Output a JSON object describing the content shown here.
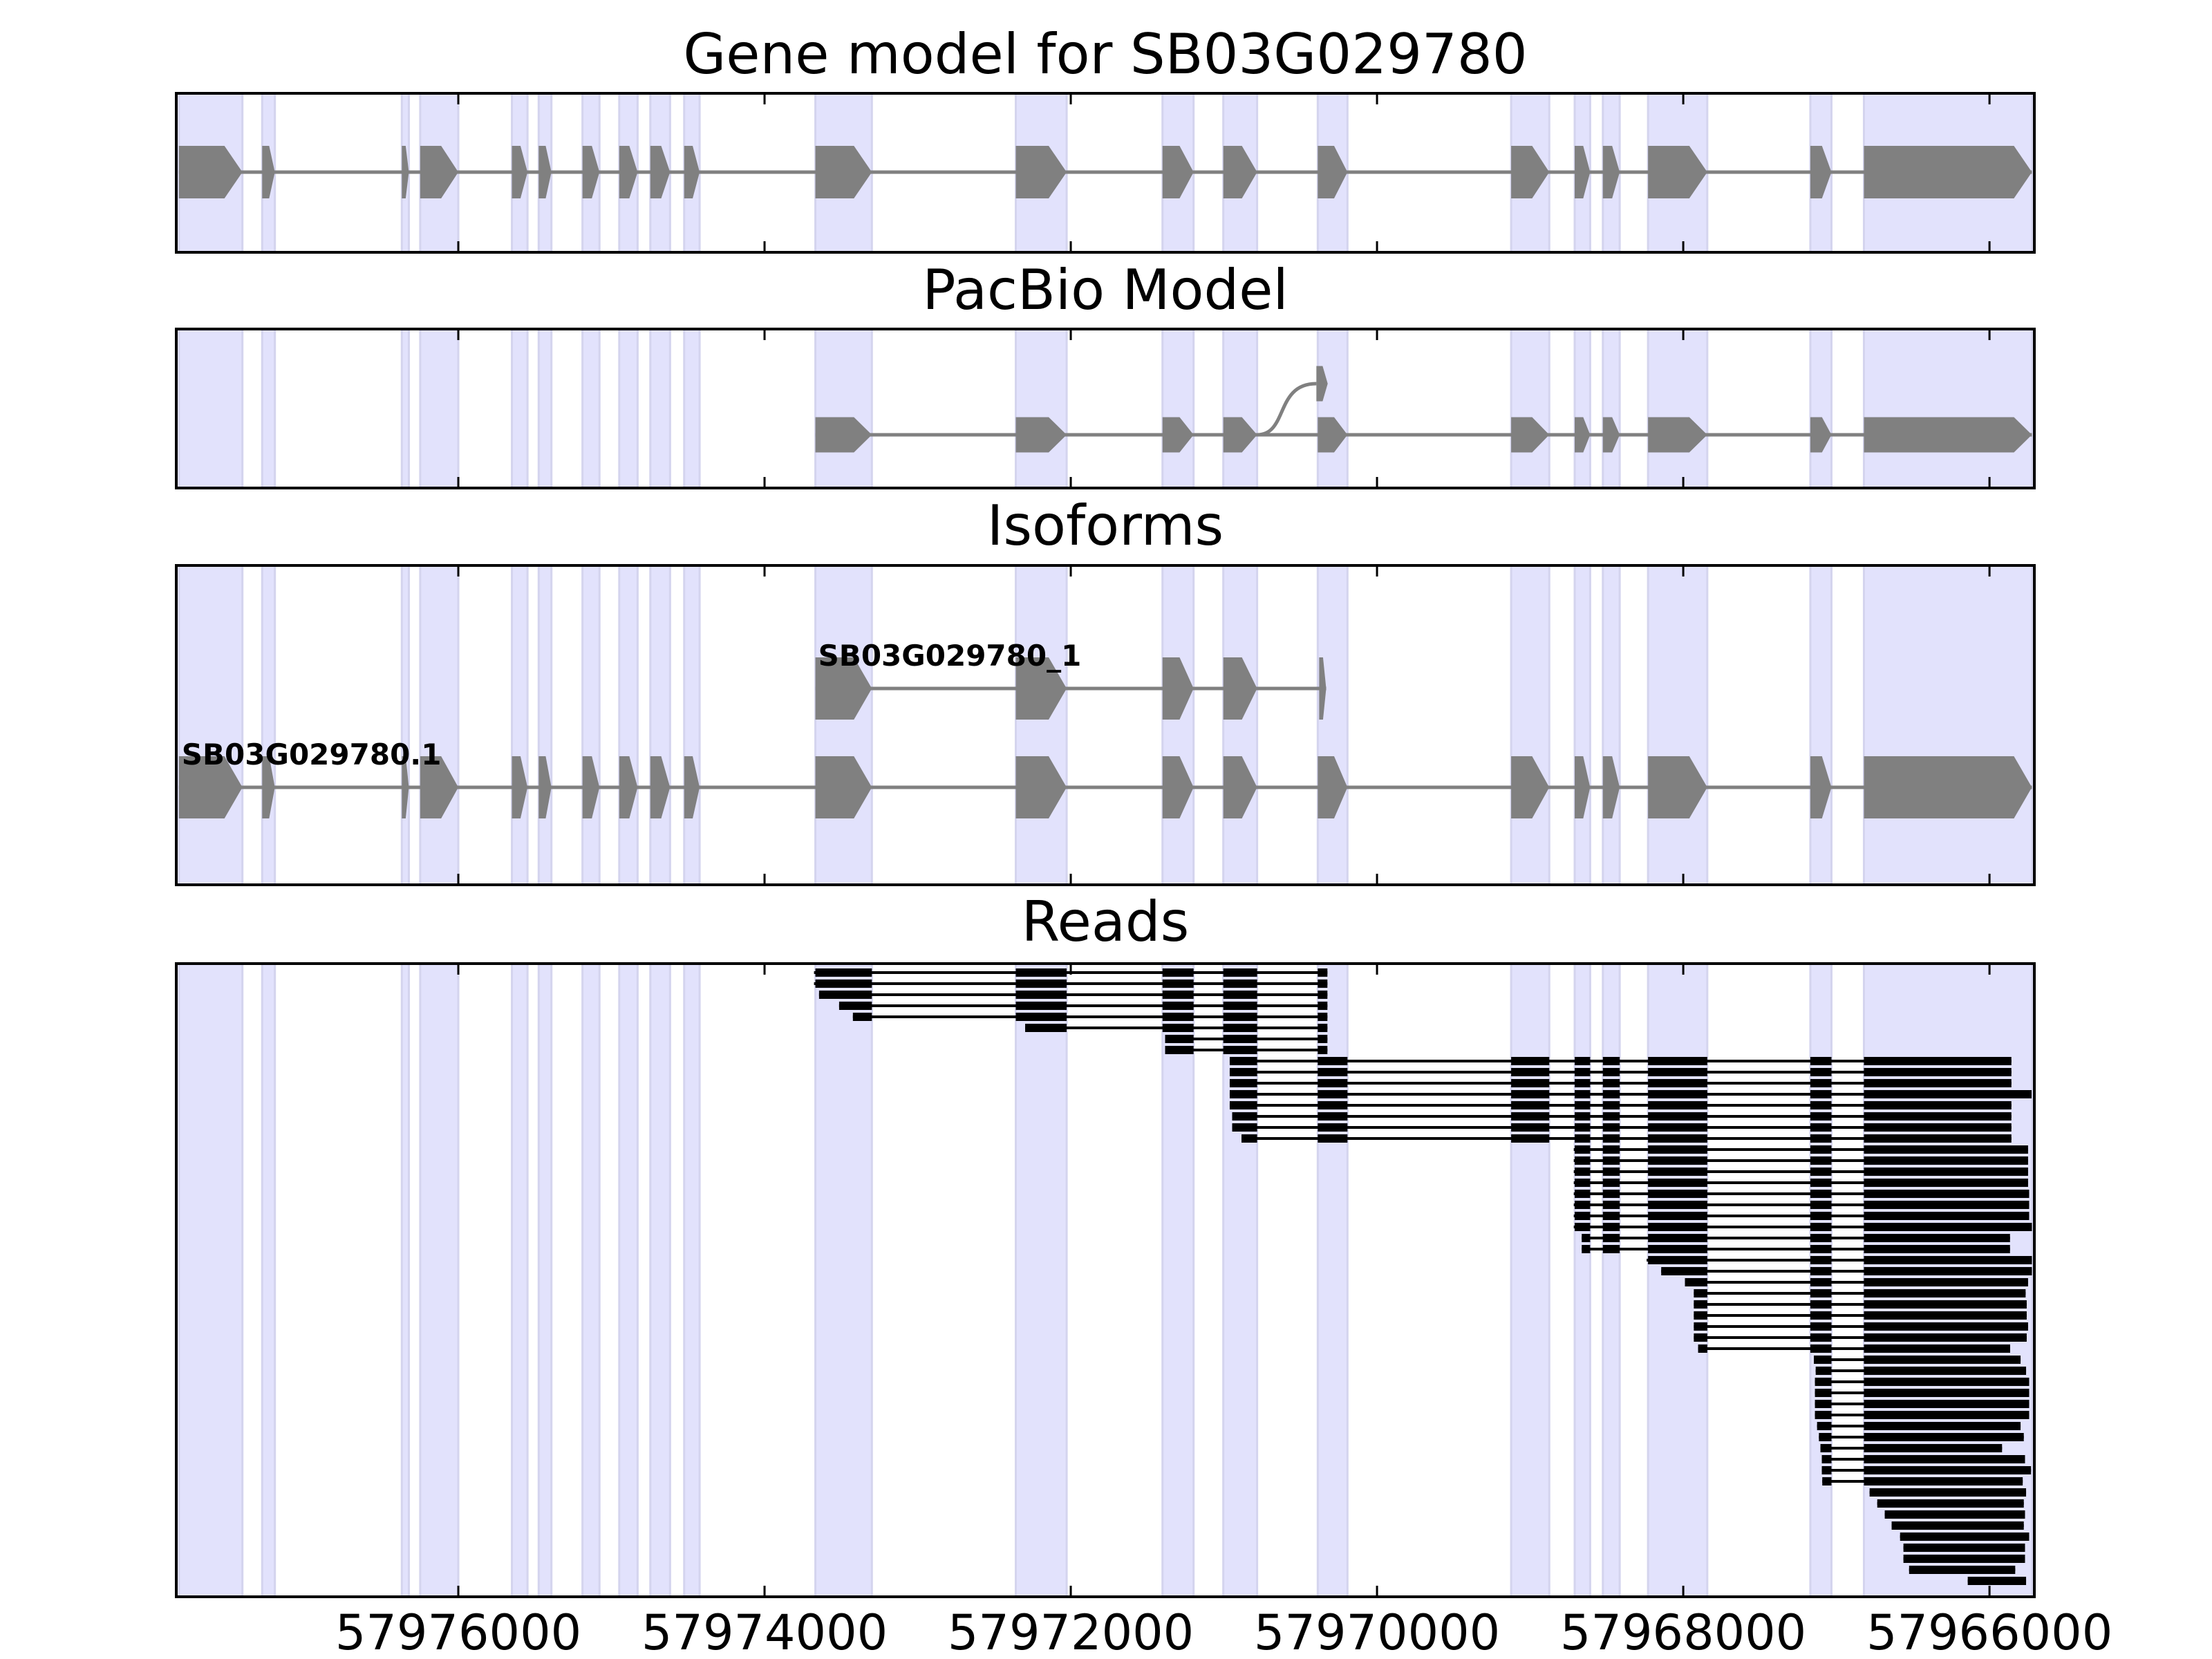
{
  "chart_data": {
    "type": "gene-model",
    "titles": {
      "gene_model": "Gene model for SB03G029780",
      "pacbio": "PacBio Model",
      "isoforms": "Isoforms",
      "reads": "Reads"
    },
    "xlim": [
      57977842,
      57965707
    ],
    "xticks": [
      57976000,
      57974000,
      57972000,
      57970000,
      57968000,
      57966000
    ],
    "xtick_labels": [
      "57976000",
      "57974000",
      "57972000",
      "57970000",
      "57968000",
      "57966000"
    ],
    "colors": {
      "exon": "#808080",
      "band": "#e2e2fc",
      "band_edge": "#d4d4ee",
      "read": "#000000",
      "axis": "#000000"
    },
    "exons": [
      [
        57977825,
        57977410
      ],
      [
        57977281,
        57977198
      ],
      [
        57976369,
        57976323
      ],
      [
        57976249,
        57976000
      ],
      [
        57975650,
        57975548
      ],
      [
        57975475,
        57975392
      ],
      [
        57975189,
        57975078
      ],
      [
        57974949,
        57974829
      ],
      [
        57974746,
        57974617
      ],
      [
        57974525,
        57974424
      ],
      [
        57973668,
        57973299
      ],
      [
        57972359,
        57972027
      ],
      [
        57971401,
        57971198
      ],
      [
        57971004,
        57970783
      ],
      [
        57970387,
        57970193
      ],
      [
        57969124,
        57968875
      ],
      [
        57968709,
        57968608
      ],
      [
        57968525,
        57968415
      ],
      [
        57968230,
        57967843
      ],
      [
        57967170,
        57967032
      ],
      [
        57966820,
        57965723
      ]
    ],
    "pacbio": {
      "exon_indices": [
        10,
        11,
        12,
        13,
        14,
        15,
        16,
        17,
        18,
        19,
        20
      ],
      "alt_exon": [
        57970396,
        57970322
      ],
      "alt_from_index": 13
    },
    "isoforms": [
      {
        "name": "SB03G029780_1",
        "exon_indices": [
          10,
          11,
          12,
          13
        ],
        "extra_exons": [
          [
            57970378,
            57970332
          ]
        ]
      },
      {
        "name": "SB03G029780.1",
        "exon_indices": [
          0,
          1,
          2,
          3,
          4,
          5,
          6,
          7,
          8,
          9,
          10,
          11,
          12,
          13,
          14,
          15,
          16,
          17,
          18,
          19,
          20
        ],
        "extra_exons": []
      }
    ],
    "reads": [
      [
        57973677,
        57970324
      ],
      [
        57973677,
        57970324
      ],
      [
        57973644,
        57970324
      ],
      [
        57973513,
        57970324
      ],
      [
        57973423,
        57970324
      ],
      [
        57972298,
        57970324
      ],
      [
        57971384,
        57970324
      ],
      [
        57971384,
        57970324
      ],
      [
        57970962,
        57965857
      ],
      [
        57970962,
        57965857
      ],
      [
        57970962,
        57965857
      ],
      [
        57970962,
        57965725
      ],
      [
        57970962,
        57965857
      ],
      [
        57970946,
        57965857
      ],
      [
        57970946,
        57965857
      ],
      [
        57970885,
        57965857
      ],
      [
        57968715,
        57965748
      ],
      [
        57968715,
        57965748
      ],
      [
        57968715,
        57965748
      ],
      [
        57968715,
        57965748
      ],
      [
        57968715,
        57965741
      ],
      [
        57968715,
        57965741
      ],
      [
        57968715,
        57965741
      ],
      [
        57968715,
        57965723
      ],
      [
        57968663,
        57965866
      ],
      [
        57968663,
        57965866
      ],
      [
        57968239,
        57965723
      ],
      [
        57968144,
        57965723
      ],
      [
        57967989,
        57965748
      ],
      [
        57967931,
        57965764
      ],
      [
        57967931,
        57965757
      ],
      [
        57967931,
        57965757
      ],
      [
        57967931,
        57965748
      ],
      [
        57967931,
        57965757
      ],
      [
        57967903,
        57965865
      ],
      [
        57967147,
        57965797
      ],
      [
        57967135,
        57965761
      ],
      [
        57967140,
        57965741
      ],
      [
        57967140,
        57965741
      ],
      [
        57967140,
        57965741
      ],
      [
        57967140,
        57965741
      ],
      [
        57967126,
        57965797
      ],
      [
        57967114,
        57965776
      ],
      [
        57967104,
        57965918
      ],
      [
        57967095,
        57965768
      ],
      [
        57967095,
        57965729
      ],
      [
        57967092,
        57965783
      ],
      [
        57966783,
        57965761
      ],
      [
        57966733,
        57965776
      ],
      [
        57966684,
        57965768
      ],
      [
        57966639,
        57965776
      ],
      [
        57966584,
        57965741
      ],
      [
        57966562,
        57965768
      ],
      [
        57966562,
        57965768
      ],
      [
        57966525,
        57965832
      ],
      [
        57966142,
        57965761
      ]
    ]
  }
}
